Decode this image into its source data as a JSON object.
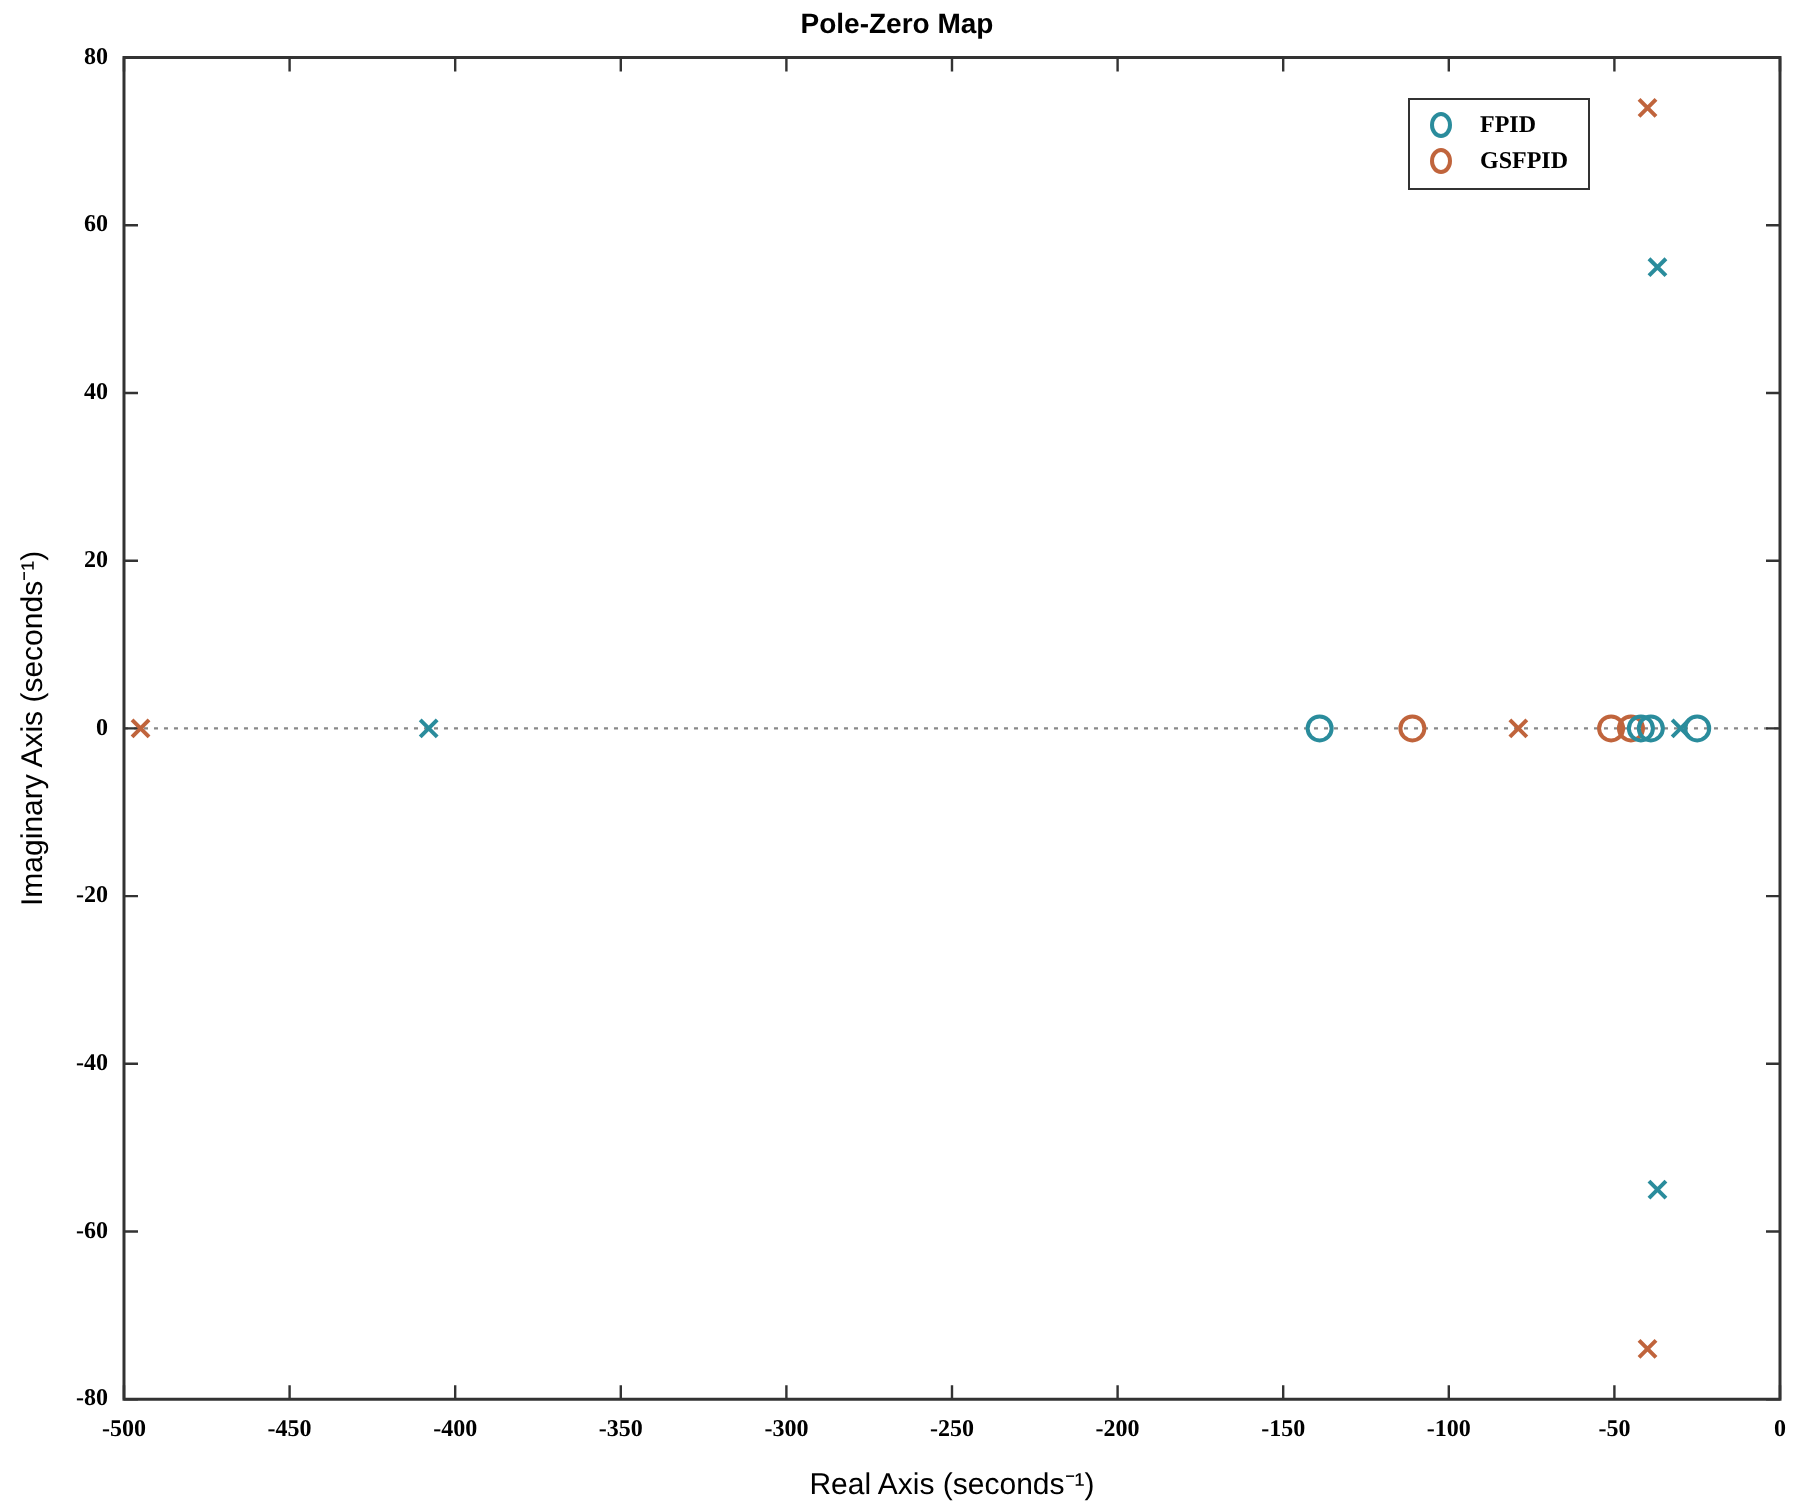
{
  "chart_data": {
    "type": "scatter",
    "title": "Pole-Zero Map",
    "xlabel": "Real Axis (seconds⁻¹)",
    "ylabel": "Imaginary Axis (seconds⁻¹)",
    "xlim": [
      -500,
      0
    ],
    "xticks": [
      -500,
      -450,
      -400,
      -350,
      -300,
      -250,
      -200,
      -150,
      -100,
      -50,
      0
    ],
    "ylim": [
      -80,
      80
    ],
    "yticks": [
      -80,
      -60,
      -40,
      -20,
      0,
      20,
      40,
      60,
      80
    ],
    "grid": false,
    "legend": "top right",
    "ref_lines": [
      {
        "axis": "y",
        "value": 0,
        "color": "#888888",
        "line_style": "dotted"
      }
    ],
    "series": [
      {
        "name": "FPID",
        "color": "#2a8c9c",
        "marker": "circle",
        "x": [
          -139,
          -42,
          -39,
          -25
        ],
        "values": [
          0,
          0,
          0,
          0
        ]
      },
      {
        "name": "GSFPID",
        "color": "#c0643c",
        "marker": "circle",
        "x": [
          -111,
          -51,
          -45
        ],
        "values": [
          0,
          0,
          0
        ]
      },
      {
        "color": "#2a8c9c",
        "marker": "cross",
        "x": [
          -408,
          -37,
          -37,
          -30
        ],
        "values": [
          0,
          55,
          -55,
          0
        ]
      },
      {
        "color": "#c0643c",
        "marker": "cross",
        "x": [
          -495,
          -79,
          -40,
          -40
        ],
        "values": [
          0,
          0,
          74,
          -74
        ]
      }
    ]
  }
}
